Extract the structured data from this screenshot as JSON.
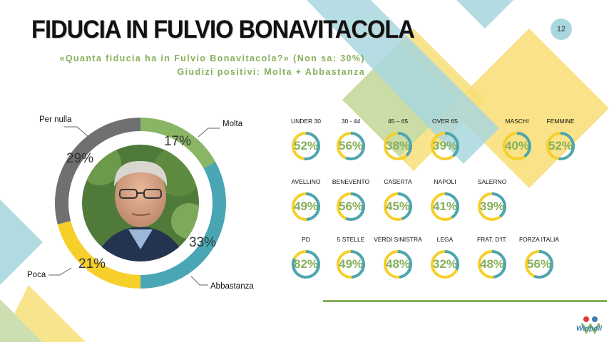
{
  "title": "FIDUCIA IN FULVIO BONAVITACOLA",
  "page_number": "12",
  "subtitle_line1": "«Quanta fiducia ha in Fulvio Bonavitacola?» (Non sa: 30%)",
  "subtitle_line2": "Giudizi positivi: Molta + Abbastanza",
  "logo_text": "Winpoll",
  "colors": {
    "green": "#8ab564",
    "teal": "#4aa6b5",
    "yellow": "#f6cf2b",
    "gray": "#707070",
    "light_blue": "#a9d7de",
    "light_yellow": "#f8df7a",
    "light_green": "#c5dca8"
  },
  "chart_data": [
    {
      "type": "pie",
      "categories": [
        "Molta",
        "Abbastanza",
        "Poca",
        "Per nulla"
      ],
      "values": [
        17,
        33,
        21,
        29
      ],
      "value_labels": [
        "17%",
        "33%",
        "21%",
        "29%"
      ],
      "legend": "callouts",
      "photo": "portrait-photo"
    },
    {
      "type": "table",
      "groups": [
        {
          "items": [
            {
              "label": "UNDER 30",
              "value": 52,
              "text": "52%"
            },
            {
              "label": "30 - 44",
              "value": 56,
              "text": "56%"
            },
            {
              "label": "45 – 65",
              "value": 38,
              "text": "38%"
            },
            {
              "label": "OVER 65",
              "value": 39,
              "text": "39%"
            },
            {
              "label": "MASCHI",
              "value": 40,
              "text": "40%"
            },
            {
              "label": "FEMMINE",
              "value": 52,
              "text": "52%"
            }
          ]
        },
        {
          "items": [
            {
              "label": "AVELLINO",
              "value": 49,
              "text": "49%"
            },
            {
              "label": "BENEVENTO",
              "value": 56,
              "text": "56%"
            },
            {
              "label": "CASERTA",
              "value": 45,
              "text": "45%"
            },
            {
              "label": "NAPOLI",
              "value": 41,
              "text": "41%"
            },
            {
              "label": "SALERNO",
              "value": 39,
              "text": "39%"
            }
          ]
        },
        {
          "items": [
            {
              "label": "PD",
              "value": 82,
              "text": "82%"
            },
            {
              "label": "5 STELLE",
              "value": 49,
              "text": "49%"
            },
            {
              "label": "VERDI SINISTRA",
              "value": 48,
              "text": "48%"
            },
            {
              "label": "LEGA",
              "value": 32,
              "text": "32%"
            },
            {
              "label": "FRAT. D'IT.",
              "value": 48,
              "text": "48%"
            },
            {
              "label": "FORZA ITALIA",
              "value": 56,
              "text": "56%"
            }
          ]
        }
      ]
    }
  ]
}
